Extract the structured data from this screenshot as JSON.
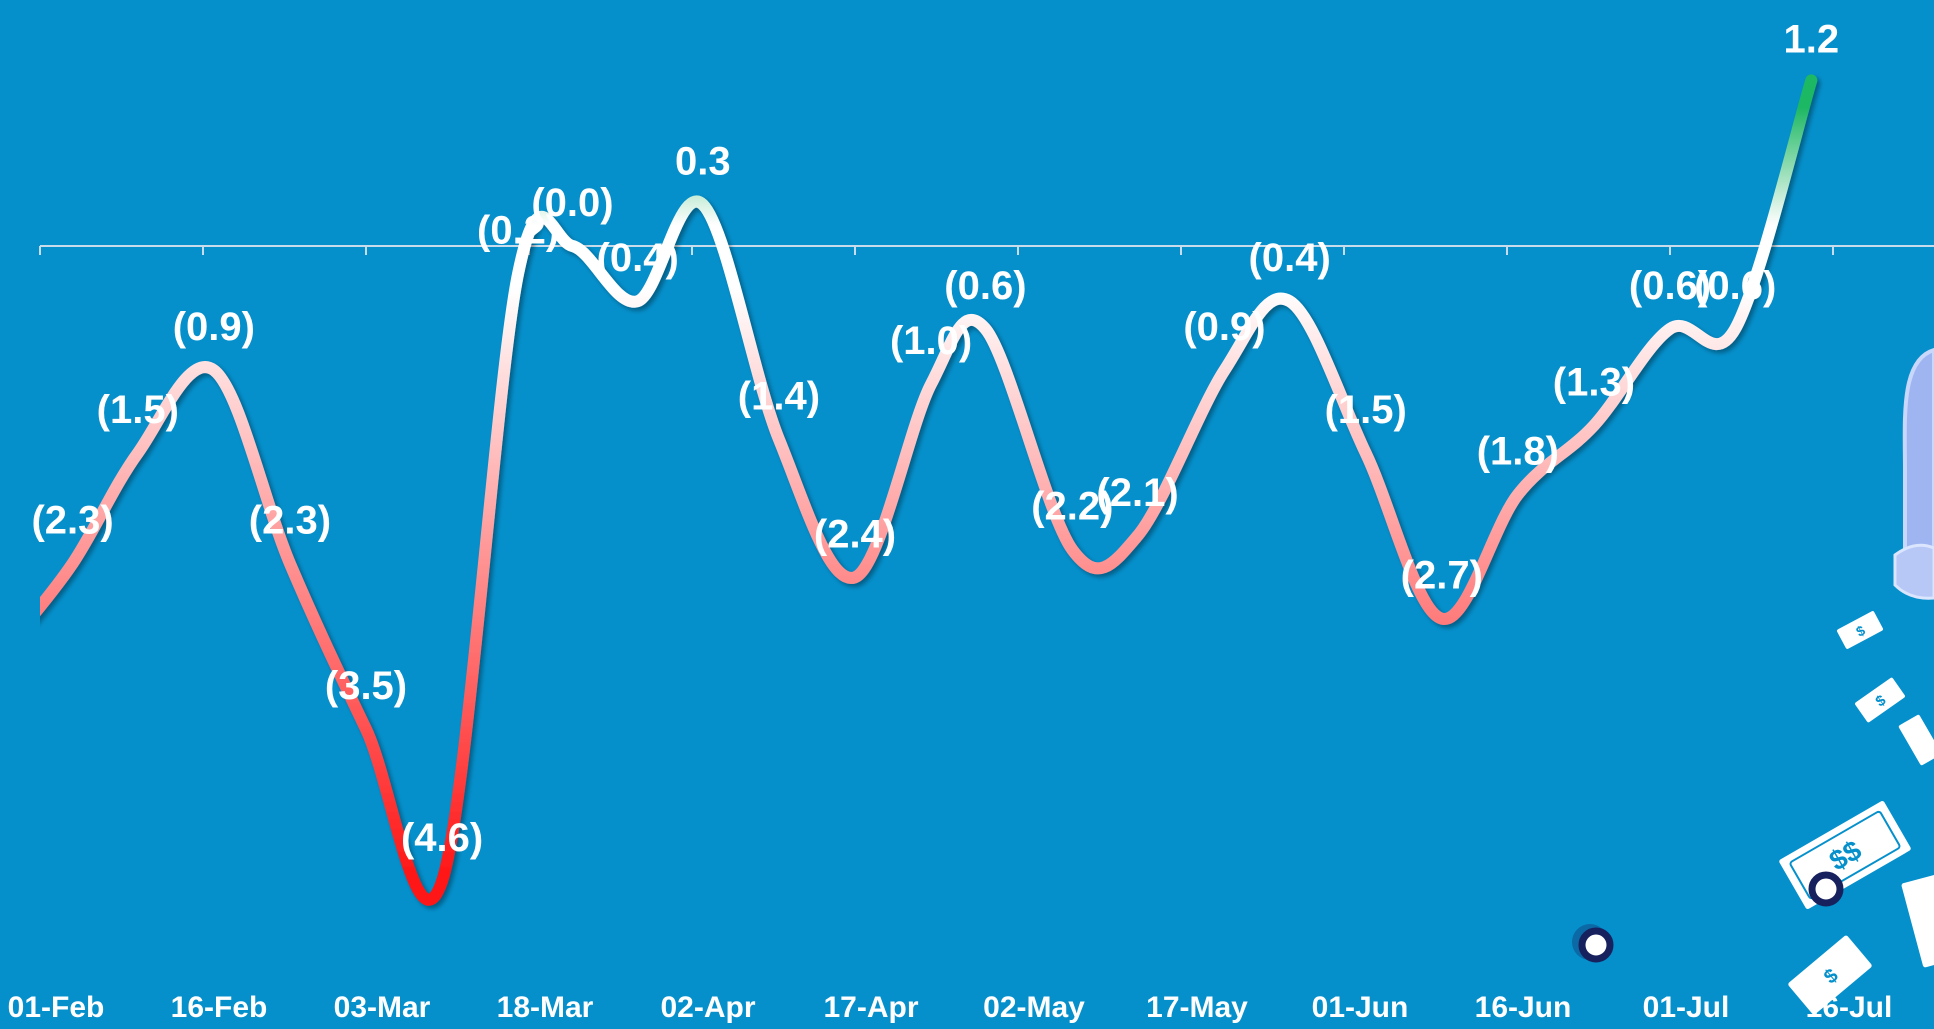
{
  "colors": {
    "background": "#0590cc",
    "axis": "#c8dceb",
    "line_negative": "#ff1414",
    "line_neutral": "#ffffff",
    "line_positive": "#1fb864",
    "label": "#ffffff",
    "decor_ring": "#16215e"
  },
  "decoration": {
    "illustration": "money-machine-illustration",
    "description_icons": [
      "bank-note-icon",
      "dollar-bill-icon"
    ]
  },
  "chart_data": {
    "type": "line",
    "title": "",
    "xlabel": "",
    "ylabel": "",
    "x_tick_labels": [
      "01-Feb",
      "16-Feb",
      "03-Mar",
      "18-Mar",
      "02-Apr",
      "17-Apr",
      "02-May",
      "17-May",
      "01-Jun",
      "16-Jun",
      "01-Jul",
      "16-Jul"
    ],
    "ylim": [
      -5.1,
      1.5
    ],
    "grid": false,
    "legend": "none",
    "zero_line": true,
    "series": [
      {
        "points": [
          {
            "x": "2020-01-29",
            "y": -2.9
          },
          {
            "x": "2020-02-04",
            "y": -2.3,
            "label": "(2.3)"
          },
          {
            "x": "2020-02-10",
            "y": -1.5,
            "label": "(1.5)"
          },
          {
            "x": "2020-02-17",
            "y": -0.9,
            "label": "(0.9)"
          },
          {
            "x": "2020-02-24",
            "y": -2.3,
            "label": "(2.3)"
          },
          {
            "x": "2020-03-02",
            "y": -3.5,
            "label": "(3.5)"
          },
          {
            "x": "2020-03-09",
            "y": -4.6,
            "label": "(4.6)"
          },
          {
            "x": "2020-03-16",
            "y": -0.2,
            "label": "(0.2)"
          },
          {
            "x": "2020-03-21",
            "y": 0.0,
            "label": "(0.0)"
          },
          {
            "x": "2020-03-27",
            "y": -0.4,
            "label": "(0.4)"
          },
          {
            "x": "2020-04-02",
            "y": 0.3,
            "label": "0.3"
          },
          {
            "x": "2020-04-09",
            "y": -1.4,
            "label": "(1.4)"
          },
          {
            "x": "2020-04-16",
            "y": -2.4,
            "label": "(2.4)"
          },
          {
            "x": "2020-04-23",
            "y": -1.0,
            "label": "(1.0)"
          },
          {
            "x": "2020-04-28",
            "y": -0.6,
            "label": "(0.6)"
          },
          {
            "x": "2020-05-06",
            "y": -2.2,
            "label": "(2.2)"
          },
          {
            "x": "2020-05-12",
            "y": -2.1,
            "label": "(2.1)"
          },
          {
            "x": "2020-05-20",
            "y": -0.9,
            "label": "(0.9)"
          },
          {
            "x": "2020-05-26",
            "y": -0.4,
            "label": "(0.4)"
          },
          {
            "x": "2020-06-02",
            "y": -1.5,
            "label": "(1.5)"
          },
          {
            "x": "2020-06-09",
            "y": -2.7,
            "label": "(2.7)"
          },
          {
            "x": "2020-06-16",
            "y": -1.8,
            "label": "(1.8)"
          },
          {
            "x": "2020-06-23",
            "y": -1.3,
            "label": "(1.3)"
          },
          {
            "x": "2020-06-30",
            "y": -0.6,
            "label": "(0.6)"
          },
          {
            "x": "2020-07-06",
            "y": -0.6,
            "label": "(0.6)"
          },
          {
            "x": "2020-07-13",
            "y": 1.2,
            "label": "1.2"
          }
        ]
      }
    ]
  }
}
